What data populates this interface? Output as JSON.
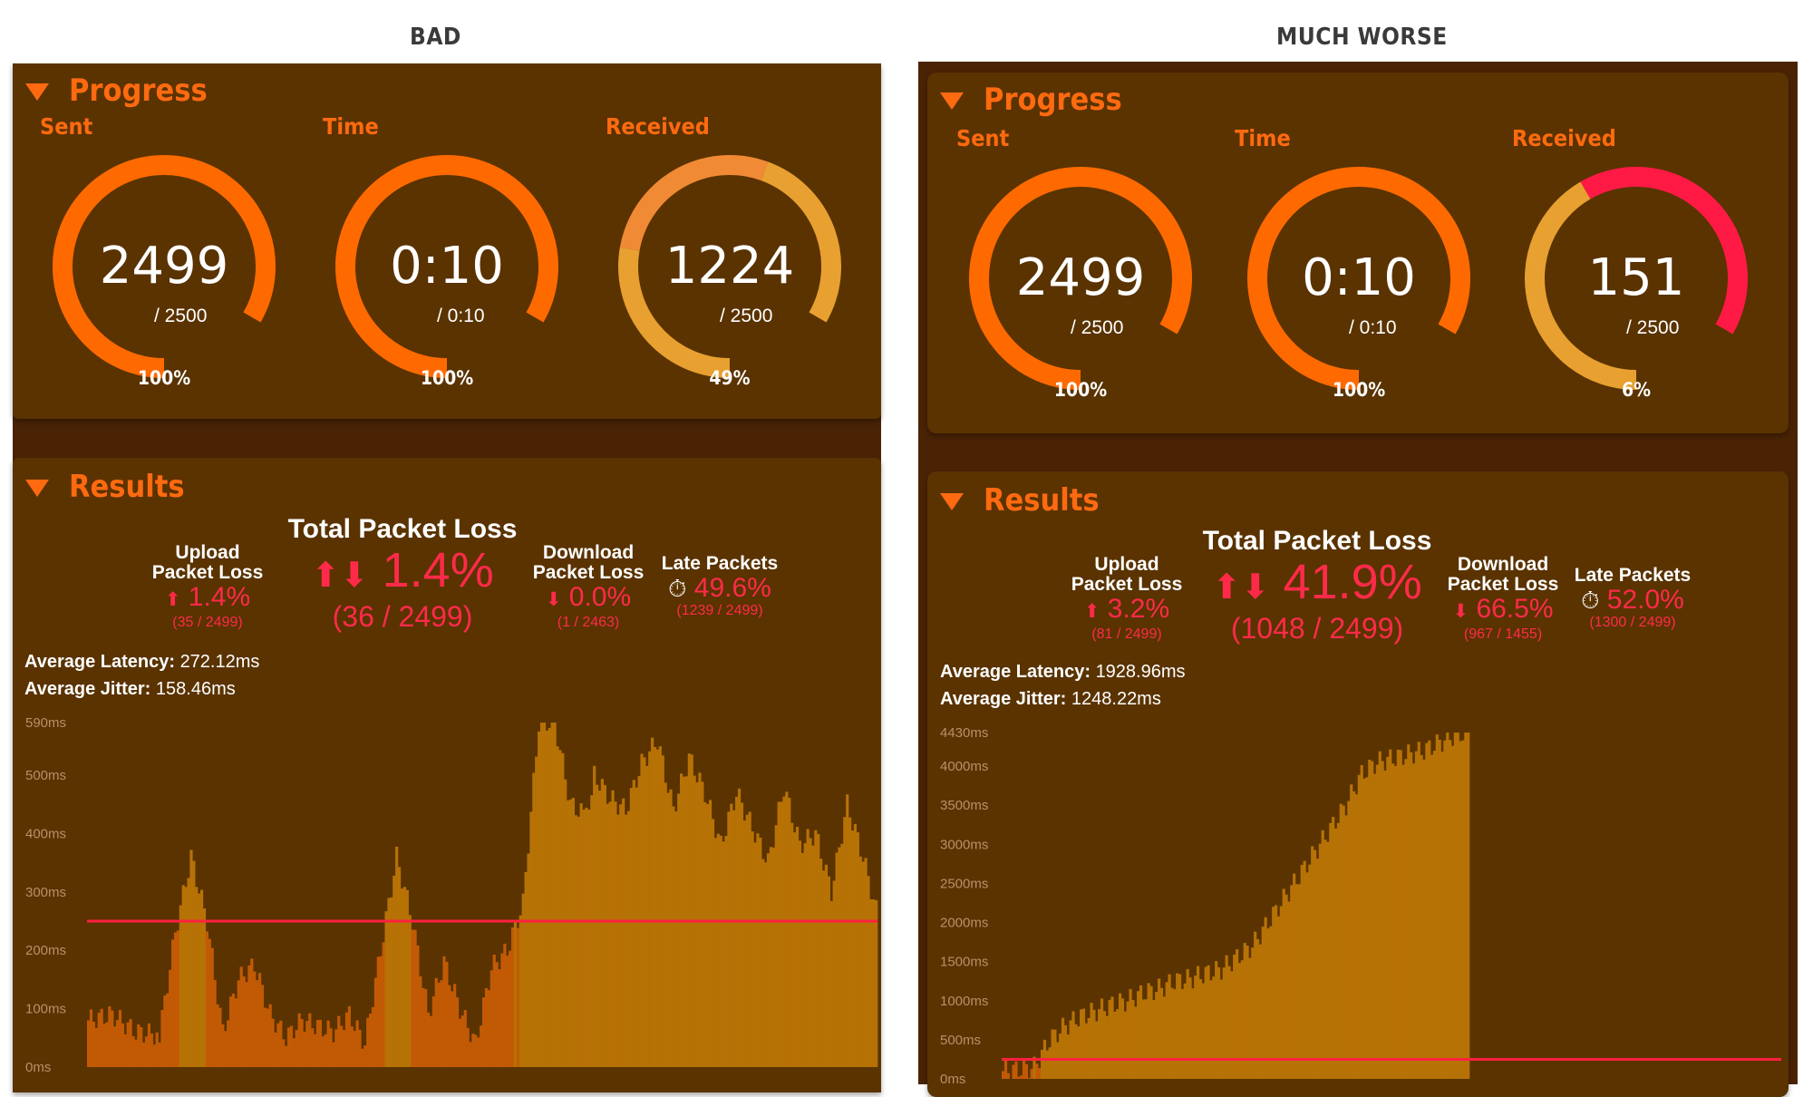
{
  "captions": {
    "left": "BAD",
    "right": "MUCH WORSE"
  },
  "colors": {
    "accent": "#ff6a10",
    "loss": "#ff2a4a",
    "bar": "#b77206",
    "bar_dark": "#c25a05",
    "threshold": "#ff2040"
  },
  "left": {
    "progress": {
      "title": "Progress",
      "sent": {
        "label": "Sent",
        "value": "2499",
        "total": "/ 2500",
        "percent": "100%",
        "fraction": 1.0,
        "colors": [
          "#ff6a00"
        ]
      },
      "time": {
        "label": "Time",
        "value": "0:10",
        "total": "/ 0:10",
        "percent": "100%",
        "fraction": 1.0,
        "colors": [
          "#ff6a00"
        ]
      },
      "received": {
        "label": "Received",
        "value": "1224",
        "total": "/ 2500",
        "percent": "49%",
        "fraction": 1.0,
        "colors": [
          "#e8a030",
          "#f08a35",
          "#e8a030"
        ]
      }
    },
    "results": {
      "title": "Results",
      "upload": {
        "label1": "Upload",
        "label2": "Packet Loss",
        "arrow": "⬆",
        "value": "1.4%",
        "sub": "(35 / 2499)"
      },
      "total": {
        "label": "Total Packet Loss",
        "arrow": "⬆⬇",
        "value": "1.4%",
        "sub": "(36 / 2499)"
      },
      "download": {
        "label1": "Download",
        "label2": "Packet Loss",
        "arrow": "⬇",
        "value": "0.0%",
        "sub": "(1 / 2463)"
      },
      "late": {
        "label": "Late Packets",
        "icon": "stopwatch-icon",
        "value": "49.6%",
        "sub": "(1239 / 2499)"
      },
      "latency_label": "Average Latency:",
      "latency_value": "272.12ms",
      "jitter_label": "Average Jitter:",
      "jitter_value": "158.46ms"
    },
    "chart_data": {
      "type": "area",
      "ylabel": "",
      "y_ticks": [
        "590ms",
        "500ms",
        "400ms",
        "300ms",
        "200ms",
        "100ms",
        "0ms"
      ],
      "ylim": [
        0,
        590
      ],
      "threshold_ms": 250,
      "x": [
        0,
        0.03,
        0.06,
        0.09,
        0.11,
        0.13,
        0.15,
        0.17,
        0.19,
        0.21,
        0.23,
        0.25,
        0.27,
        0.29,
        0.31,
        0.33,
        0.35,
        0.37,
        0.39,
        0.41,
        0.43,
        0.45,
        0.47,
        0.49,
        0.51,
        0.53,
        0.55,
        0.57,
        0.59,
        0.61,
        0.63,
        0.64,
        0.66,
        0.68,
        0.7,
        0.72,
        0.74,
        0.76,
        0.78,
        0.8,
        0.82,
        0.84,
        0.86,
        0.88,
        0.9,
        0.92,
        0.94,
        0.96,
        0.98,
        1.0
      ],
      "values": [
        80,
        90,
        60,
        55,
        230,
        360,
        250,
        60,
        150,
        175,
        90,
        50,
        80,
        70,
        60,
        90,
        40,
        200,
        360,
        250,
        90,
        180,
        100,
        40,
        170,
        200,
        280,
        590,
        590,
        450,
        430,
        500,
        460,
        440,
        520,
        560,
        440,
        530,
        470,
        380,
        470,
        410,
        350,
        480,
        380,
        400,
        300,
        450,
        360,
        250
      ]
    }
  },
  "right": {
    "progress": {
      "title": "Progress",
      "sent": {
        "label": "Sent",
        "value": "2499",
        "total": "/ 2500",
        "percent": "100%",
        "fraction": 1.0,
        "colors": [
          "#ff6a00"
        ]
      },
      "time": {
        "label": "Time",
        "value": "0:10",
        "total": "/ 0:10",
        "percent": "100%",
        "fraction": 1.0,
        "colors": [
          "#ff6a00"
        ]
      },
      "received": {
        "label": "Received",
        "value": "151",
        "total": "/ 2500",
        "percent": "6%",
        "fraction": 1.0,
        "colors": [
          "#e8a030",
          "#ff1a45"
        ]
      }
    },
    "results": {
      "title": "Results",
      "upload": {
        "label1": "Upload",
        "label2": "Packet Loss",
        "arrow": "⬆",
        "value": "3.2%",
        "sub": "(81 / 2499)"
      },
      "total": {
        "label": "Total Packet Loss",
        "arrow": "⬆⬇",
        "value": "41.9%",
        "sub": "(1048 / 2499)"
      },
      "download": {
        "label1": "Download",
        "label2": "Packet Loss",
        "arrow": "⬇",
        "value": "66.5%",
        "sub": "(967 / 1455)"
      },
      "late": {
        "label": "Late Packets",
        "icon": "stopwatch-icon",
        "value": "52.0%",
        "sub": "(1300 / 2499)"
      },
      "latency_label": "Average Latency:",
      "latency_value": "1928.96ms",
      "jitter_label": "Average Jitter:",
      "jitter_value": "1248.22ms"
    },
    "chart_data": {
      "type": "area",
      "ylabel": "",
      "y_ticks": [
        "4430ms",
        "4000ms",
        "3500ms",
        "3000ms",
        "2500ms",
        "2000ms",
        "1500ms",
        "1000ms",
        "500ms",
        "0ms"
      ],
      "ylim": [
        0,
        4430
      ],
      "threshold_ms": 250,
      "x": [
        0,
        0.02,
        0.04,
        0.06,
        0.08,
        0.1,
        0.12,
        0.14,
        0.16,
        0.18,
        0.2,
        0.22,
        0.24,
        0.26,
        0.28,
        0.3,
        0.32,
        0.34,
        0.36,
        0.38,
        0.4,
        0.42,
        0.44,
        0.46,
        0.48,
        0.5,
        0.52,
        0.54,
        0.56,
        0.58,
        0.6
      ],
      "values": [
        100,
        120,
        150,
        500,
        680,
        800,
        870,
        950,
        1000,
        1100,
        1150,
        1250,
        1280,
        1350,
        1400,
        1550,
        1700,
        2000,
        2300,
        2600,
        2900,
        3200,
        3500,
        3900,
        4050,
        4100,
        4150,
        4200,
        4300,
        4400,
        4430
      ]
    }
  }
}
